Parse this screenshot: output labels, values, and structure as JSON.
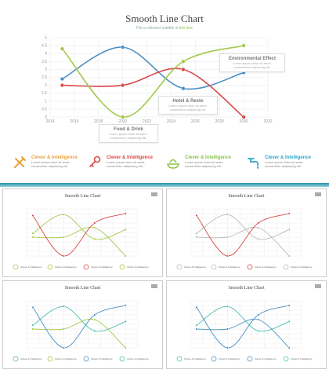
{
  "header": {
    "title": "Smooth Line Chart",
    "subtitle_prefix": "Put a relevant subtitle in",
    "subtitle_highlight": "this line"
  },
  "chart_data": {
    "type": "line",
    "x_ticks": [
      2014,
      2016,
      2018,
      2020,
      2022,
      2024,
      2026,
      2028,
      2030,
      2032
    ],
    "y_ticks": [
      0,
      0.5,
      1,
      1.5,
      2,
      2.5,
      3,
      3.5,
      4,
      4.5,
      5
    ],
    "xlim": [
      2014,
      2032
    ],
    "ylim": [
      0,
      5
    ],
    "grid": true,
    "series": [
      {
        "color": "#4a90c4",
        "x": [
          2015,
          2020,
          2025,
          2030
        ],
        "values": [
          2.4,
          4.4,
          1.8,
          2.8
        ]
      },
      {
        "color": "#d94848",
        "x": [
          2015,
          2020,
          2025,
          2030
        ],
        "values": [
          2.0,
          2.0,
          3.0,
          0.0
        ]
      },
      {
        "color": "#a3c94a",
        "x": [
          2015,
          2020,
          2025,
          2030
        ],
        "values": [
          4.3,
          0.0,
          3.5,
          4.5
        ]
      }
    ]
  },
  "annotations": [
    {
      "heading": "Environmental Effect",
      "line1": "Lorem ipsum dolor sit amet,",
      "line2": "consectetur adipiscing elit."
    },
    {
      "heading": "Hotel & Resto",
      "line1": "Lorem ipsum dolor sit amet,",
      "line2": "consectetur adipiscing elit."
    },
    {
      "heading": "Food & Drink",
      "line1": "Lorem ipsum dolor sit amet,",
      "line2": "consectetur adipiscing elit."
    }
  ],
  "features": [
    {
      "title": "Clever & Intelligence",
      "line1": "Lorem ipsum dolor sit amet,",
      "line2": "consectetur adipiscing elit.",
      "color": "#e8a33d",
      "icon": "tools-icon"
    },
    {
      "title": "Clever & Intelligence",
      "line1": "Lorem ipsum dolor sit amet,",
      "line2": "consectetur adipiscing elit.",
      "color": "#d94848",
      "icon": "key-icon"
    },
    {
      "title": "Clever & Intelligence",
      "line1": "Lorem ipsum dolor sit amet,",
      "line2": "consectetur adipiscing elit.",
      "color": "#8bc34a",
      "icon": "food-icon"
    },
    {
      "title": "Clever & Intelligence",
      "line1": "Lorem ipsum dolor sit amet,",
      "line2": "consectetur adipiscing elit.",
      "color": "#2aa8c9",
      "icon": "faucet-icon"
    }
  ],
  "thumbnails": [
    {
      "title": "Smooth Line Chart",
      "colors": [
        "#a3c94a",
        "#a3c94a",
        "#d94848"
      ]
    },
    {
      "title": "Smooth Line Chart",
      "colors": [
        "#bbbbbb",
        "#bbbbbb",
        "#d94848"
      ]
    },
    {
      "title": "Smooth Line Chart",
      "colors": [
        "#4ac0b0",
        "#a3c94a",
        "#4a90c4"
      ]
    },
    {
      "title": "Smooth Line Chart",
      "colors": [
        "#4ac0b0",
        "#4a90c4",
        "#4a90c4"
      ]
    }
  ],
  "thumb_feature_label": "Clever & Intelligence"
}
